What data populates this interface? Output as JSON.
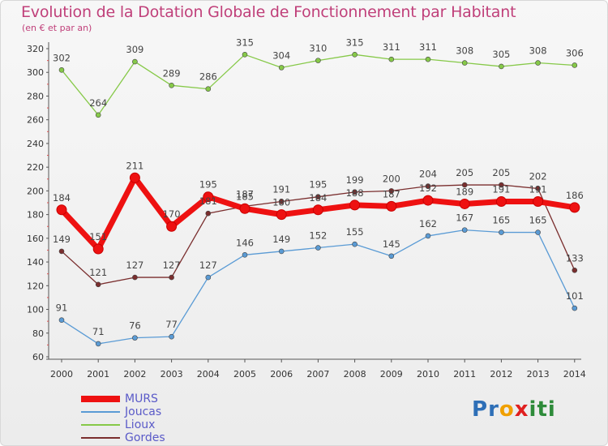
{
  "chart_data": {
    "type": "line",
    "title": "Evolution de la Dotation Globale de Fonctionnement par Habitant",
    "subtitle": "(en € et par an)",
    "categories": [
      "2000",
      "2001",
      "2002",
      "2003",
      "2004",
      "2005",
      "2006",
      "2007",
      "2008",
      "2009",
      "2010",
      "2011",
      "2012",
      "2013",
      "2014"
    ],
    "ylim": [
      60,
      320
    ],
    "yticks": [
      60,
      80,
      100,
      120,
      140,
      160,
      180,
      200,
      220,
      240,
      260,
      280,
      300,
      320
    ],
    "grid": false,
    "legend_position": "bottom-left",
    "series": [
      {
        "name": "MURS",
        "color": "#ee1111",
        "values": [
          184,
          151,
          211,
          170,
          195,
          185,
          180,
          184,
          188,
          187,
          192,
          189,
          191,
          191,
          186
        ]
      },
      {
        "name": "Joucas",
        "color": "#5a9bd5",
        "values": [
          91,
          71,
          76,
          77,
          127,
          146,
          149,
          152,
          155,
          145,
          162,
          167,
          165,
          165,
          101
        ]
      },
      {
        "name": "Lioux",
        "color": "#86c948",
        "values": [
          302,
          264,
          309,
          289,
          286,
          315,
          304,
          310,
          315,
          311,
          311,
          308,
          305,
          308,
          306
        ]
      },
      {
        "name": "Gordes",
        "color": "#7a2e2e",
        "values": [
          149,
          121,
          127,
          127,
          181,
          187,
          191,
          195,
          199,
          200,
          204,
          205,
          205,
          202,
          133
        ]
      }
    ]
  },
  "logo": {
    "letters": [
      {
        "ch": "P",
        "color": "#2e6fb7"
      },
      {
        "ch": "r",
        "color": "#2e6fb7"
      },
      {
        "ch": "o",
        "color": "#f0a000"
      },
      {
        "ch": "x",
        "color": "#e02020"
      },
      {
        "ch": "i",
        "color": "#2e8b3a"
      },
      {
        "ch": "t",
        "color": "#2e8b3a"
      },
      {
        "ch": "i",
        "color": "#2e8b3a"
      }
    ]
  }
}
